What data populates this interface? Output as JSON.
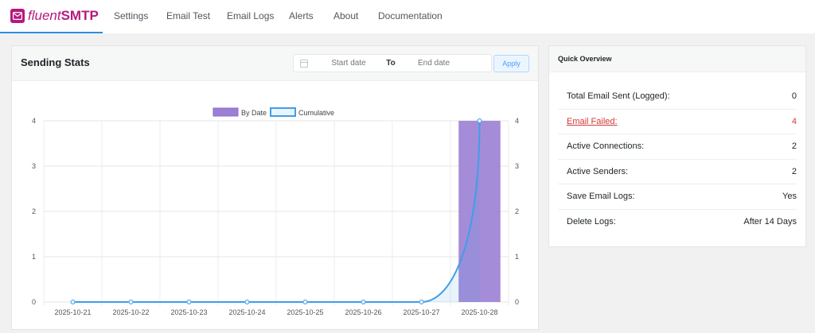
{
  "brand": {
    "name_italic": "fluent",
    "name_bold": "SMTP"
  },
  "nav": [
    "Settings",
    "Email Test",
    "Email Logs",
    "Alerts",
    "About",
    "Documentation"
  ],
  "stats": {
    "title": "Sending Stats",
    "start_placeholder": "Start date",
    "separator": "To",
    "end_placeholder": "End date",
    "apply_label": "Apply"
  },
  "chart_data": {
    "type": "bar",
    "categories": [
      "2025-10-21",
      "2025-10-22",
      "2025-10-23",
      "2025-10-24",
      "2025-10-25",
      "2025-10-26",
      "2025-10-27",
      "2025-10-28"
    ],
    "series": [
      {
        "name": "By Date",
        "type": "bar",
        "values": [
          0,
          0,
          0,
          0,
          0,
          0,
          0,
          4
        ]
      },
      {
        "name": "Cumulative",
        "type": "line",
        "values": [
          0,
          0,
          0,
          0,
          0,
          0,
          0,
          4
        ]
      }
    ],
    "ylim": [
      0,
      4
    ],
    "yticks": [
      0,
      1,
      2,
      3,
      4
    ],
    "legend": "top",
    "grid": true,
    "colors": {
      "bar": "#9b7fd4",
      "line": "#3f9ee8"
    }
  },
  "overview": {
    "title": "Quick Overview",
    "rows": [
      {
        "label": "Total Email Sent (Logged):",
        "value": "0"
      },
      {
        "label": "Email Failed:",
        "value": "4"
      },
      {
        "label": "Active Connections:",
        "value": "2"
      },
      {
        "label": "Active Senders:",
        "value": "2"
      },
      {
        "label": "Save Email Logs:",
        "value": "Yes"
      },
      {
        "label": "Delete Logs:",
        "value": "After 14 Days"
      }
    ]
  }
}
